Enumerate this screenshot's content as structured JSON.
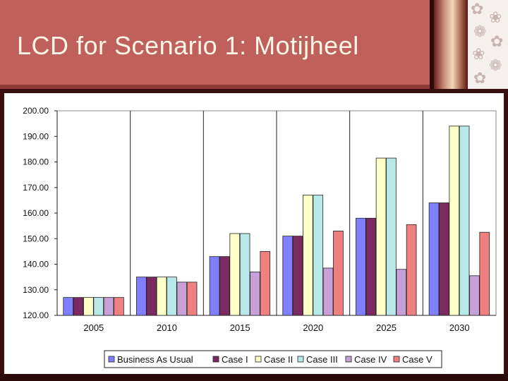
{
  "slide": {
    "title": "LCD for Scenario 1: Motijheel"
  },
  "decor": {
    "icon": "flower-pattern-icon"
  },
  "colors": {
    "title_band": "#c0605a",
    "background": "#3a0f0f"
  },
  "chart_data": {
    "type": "bar",
    "categories": [
      "2005",
      "2010",
      "2015",
      "2020",
      "2025",
      "2030"
    ],
    "ylim": [
      120,
      200
    ],
    "yticks": [
      "120.00",
      "130.00",
      "140.00",
      "150.00",
      "160.00",
      "170.00",
      "180.00",
      "190.00",
      "200.00"
    ],
    "grid": "vertical",
    "legend_placement": "bottom",
    "series": [
      {
        "name": "Business As Usual",
        "color": "#8080ff",
        "values": [
          127,
          135,
          143,
          151,
          158,
          164
        ]
      },
      {
        "name": "Case I",
        "color": "#7a2a60",
        "values": [
          127,
          135,
          143,
          151,
          158,
          164
        ]
      },
      {
        "name": "Case II",
        "color": "#ffffc8",
        "values": [
          127,
          135,
          152,
          167,
          181.5,
          194
        ]
      },
      {
        "name": "Case III",
        "color": "#b8e8e8",
        "values": [
          127,
          135,
          152,
          167,
          181.5,
          194
        ]
      },
      {
        "name": "Case IV",
        "color": "#c8a0d8",
        "values": [
          127,
          133,
          137,
          138.5,
          138,
          135.5
        ]
      },
      {
        "name": "Case V",
        "color": "#f08080",
        "values": [
          127,
          133,
          145,
          153,
          155.5,
          152.5
        ]
      }
    ]
  }
}
